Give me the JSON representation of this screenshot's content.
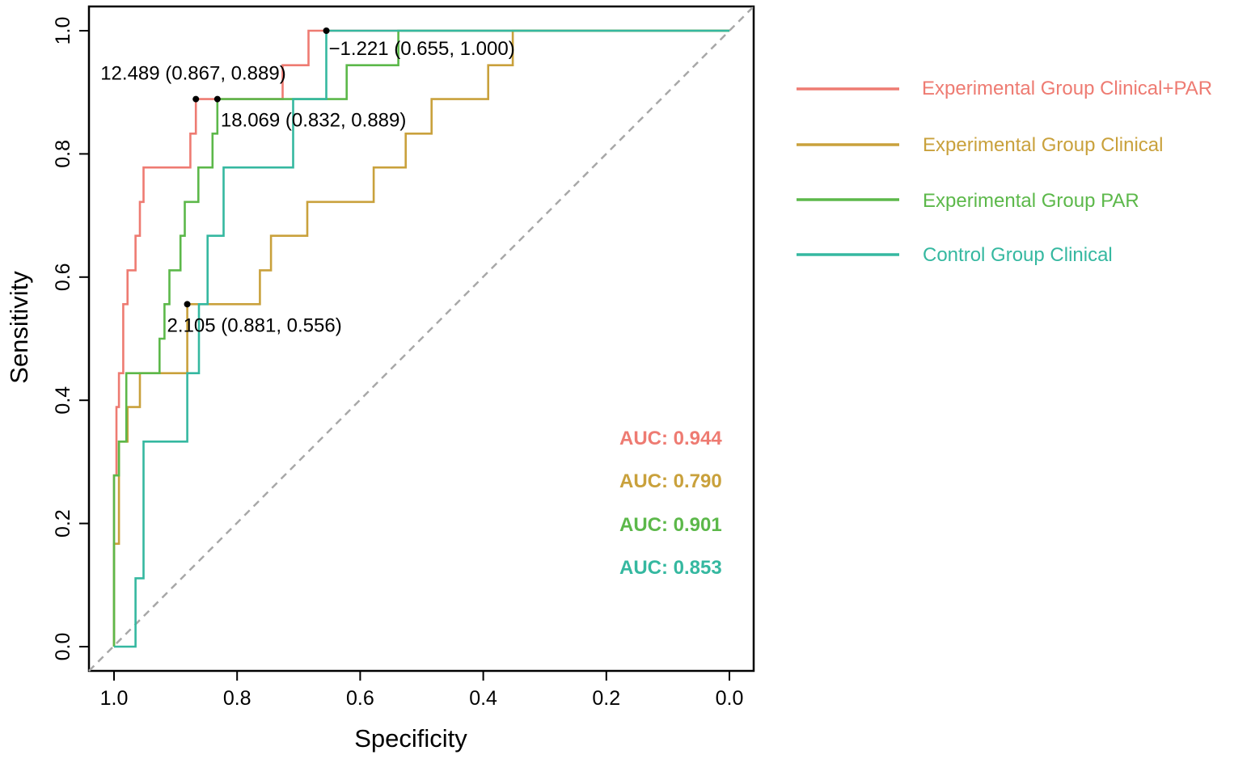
{
  "chart_data": {
    "type": "line",
    "title": "",
    "xlabel": "Specificity",
    "ylabel": "Sensitivity",
    "xlim": [
      1.0,
      0.0
    ],
    "ylim": [
      0.0,
      1.0
    ],
    "x_ticks": [
      "1.0",
      "0.8",
      "0.6",
      "0.4",
      "0.2",
      "0.0"
    ],
    "y_ticks": [
      "0.0",
      "0.2",
      "0.4",
      "0.6",
      "0.8",
      "1.0"
    ],
    "x_tick_values": [
      1.0,
      0.8,
      0.6,
      0.4,
      0.2,
      0.0
    ],
    "y_tick_values": [
      0.0,
      0.2,
      0.4,
      0.6,
      0.8,
      1.0
    ],
    "grid": false,
    "legend_position": "right",
    "reference_line": {
      "from": [
        1.0,
        0.0
      ],
      "to": [
        0.0,
        1.0
      ],
      "style": "dashed",
      "color": "#a8a8a8"
    },
    "series": [
      {
        "name": "Experimental Group Clinical+PAR",
        "color": "#ee7b72",
        "auc_text": "AUC: 0.944",
        "points": [
          [
            1.0,
            0.0
          ],
          [
            1.0,
            0.278
          ],
          [
            0.996,
            0.278
          ],
          [
            0.996,
            0.389
          ],
          [
            0.992,
            0.389
          ],
          [
            0.992,
            0.444
          ],
          [
            0.985,
            0.444
          ],
          [
            0.985,
            0.556
          ],
          [
            0.978,
            0.556
          ],
          [
            0.978,
            0.611
          ],
          [
            0.965,
            0.611
          ],
          [
            0.965,
            0.667
          ],
          [
            0.958,
            0.667
          ],
          [
            0.958,
            0.722
          ],
          [
            0.952,
            0.722
          ],
          [
            0.952,
            0.778
          ],
          [
            0.876,
            0.778
          ],
          [
            0.876,
            0.833
          ],
          [
            0.867,
            0.833
          ],
          [
            0.867,
            0.889
          ],
          [
            0.726,
            0.889
          ],
          [
            0.726,
            0.944
          ],
          [
            0.684,
            0.944
          ],
          [
            0.684,
            1.0
          ],
          [
            0.0,
            1.0
          ]
        ]
      },
      {
        "name": "Experimental Group Clinical",
        "color": "#c9a13c",
        "auc_text": "AUC: 0.790",
        "points": [
          [
            1.0,
            0.0
          ],
          [
            1.0,
            0.167
          ],
          [
            0.992,
            0.167
          ],
          [
            0.992,
            0.333
          ],
          [
            0.978,
            0.333
          ],
          [
            0.978,
            0.389
          ],
          [
            0.958,
            0.389
          ],
          [
            0.958,
            0.444
          ],
          [
            0.881,
            0.444
          ],
          [
            0.881,
            0.556
          ],
          [
            0.763,
            0.556
          ],
          [
            0.763,
            0.611
          ],
          [
            0.745,
            0.611
          ],
          [
            0.745,
            0.667
          ],
          [
            0.686,
            0.667
          ],
          [
            0.686,
            0.722
          ],
          [
            0.578,
            0.722
          ],
          [
            0.578,
            0.778
          ],
          [
            0.526,
            0.778
          ],
          [
            0.526,
            0.833
          ],
          [
            0.484,
            0.833
          ],
          [
            0.484,
            0.889
          ],
          [
            0.392,
            0.889
          ],
          [
            0.392,
            0.944
          ],
          [
            0.352,
            0.944
          ],
          [
            0.352,
            1.0
          ],
          [
            0.0,
            1.0
          ]
        ]
      },
      {
        "name": "Experimental Group PAR",
        "color": "#5cb84a",
        "auc_text": "AUC: 0.901",
        "points": [
          [
            1.0,
            0.0
          ],
          [
            1.0,
            0.278
          ],
          [
            0.992,
            0.278
          ],
          [
            0.992,
            0.333
          ],
          [
            0.98,
            0.333
          ],
          [
            0.98,
            0.444
          ],
          [
            0.926,
            0.444
          ],
          [
            0.926,
            0.5
          ],
          [
            0.918,
            0.5
          ],
          [
            0.918,
            0.556
          ],
          [
            0.91,
            0.556
          ],
          [
            0.91,
            0.611
          ],
          [
            0.892,
            0.611
          ],
          [
            0.892,
            0.667
          ],
          [
            0.885,
            0.667
          ],
          [
            0.885,
            0.722
          ],
          [
            0.863,
            0.722
          ],
          [
            0.863,
            0.778
          ],
          [
            0.84,
            0.778
          ],
          [
            0.84,
            0.833
          ],
          [
            0.832,
            0.833
          ],
          [
            0.832,
            0.889
          ],
          [
            0.622,
            0.889
          ],
          [
            0.622,
            0.944
          ],
          [
            0.538,
            0.944
          ],
          [
            0.538,
            1.0
          ],
          [
            0.0,
            1.0
          ]
        ]
      },
      {
        "name": "Control Group Clinical",
        "color": "#35b8a0",
        "auc_text": "AUC: 0.853",
        "points": [
          [
            1.0,
            0.0
          ],
          [
            0.965,
            0.0
          ],
          [
            0.965,
            0.111
          ],
          [
            0.952,
            0.111
          ],
          [
            0.952,
            0.333
          ],
          [
            0.881,
            0.333
          ],
          [
            0.881,
            0.444
          ],
          [
            0.862,
            0.444
          ],
          [
            0.862,
            0.556
          ],
          [
            0.848,
            0.556
          ],
          [
            0.848,
            0.667
          ],
          [
            0.822,
            0.667
          ],
          [
            0.822,
            0.778
          ],
          [
            0.709,
            0.778
          ],
          [
            0.709,
            0.889
          ],
          [
            0.655,
            0.889
          ],
          [
            0.655,
            1.0
          ],
          [
            0.0,
            1.0
          ]
        ]
      }
    ],
    "annotations": [
      {
        "text": "12.489 (0.867, 0.889)",
        "point": [
          0.867,
          0.889
        ]
      },
      {
        "text": "18.069 (0.832, 0.889)",
        "point": [
          0.832,
          0.889
        ]
      },
      {
        "text": "−1.221 (0.655, 1.000)",
        "point": [
          0.655,
          1.0
        ]
      },
      {
        "text": "2.105 (0.881, 0.556)",
        "point": [
          0.881,
          0.556
        ]
      }
    ]
  }
}
